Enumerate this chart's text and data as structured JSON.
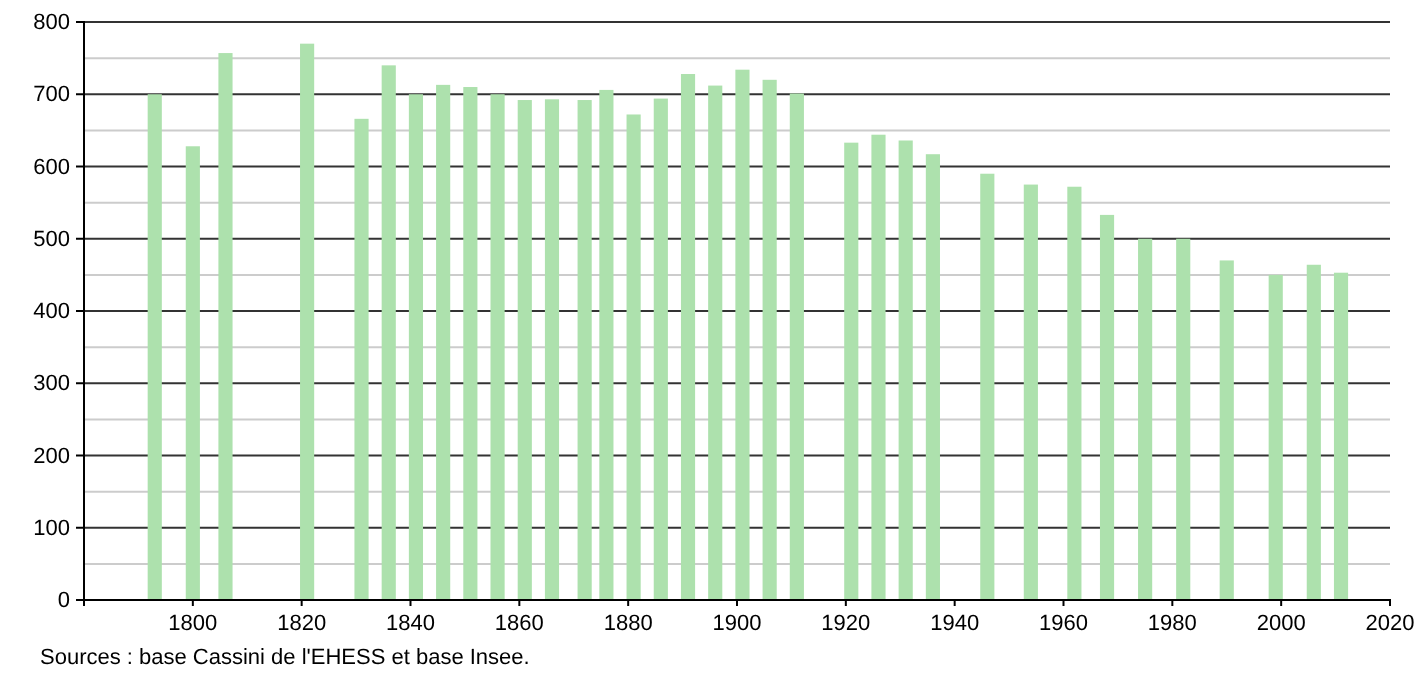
{
  "chart_data": {
    "type": "bar",
    "x": [
      1793,
      1800,
      1806,
      1821,
      1831,
      1836,
      1841,
      1846,
      1851,
      1856,
      1861,
      1866,
      1872,
      1876,
      1881,
      1886,
      1891,
      1896,
      1901,
      1906,
      1911,
      1921,
      1926,
      1931,
      1936,
      1946,
      1954,
      1962,
      1968,
      1975,
      1982,
      1990,
      1999,
      2006,
      2011
    ],
    "values": [
      700,
      628,
      757,
      770,
      666,
      740,
      700,
      713,
      710,
      700,
      692,
      693,
      692,
      706,
      672,
      694,
      728,
      712,
      734,
      720,
      701,
      633,
      644,
      636,
      617,
      590,
      575,
      572,
      533,
      500,
      500,
      470,
      450,
      464,
      453
    ],
    "color": "#ade1ad",
    "xlim": [
      1780,
      2020
    ],
    "xticks": [
      1800,
      1820,
      1840,
      1860,
      1880,
      1900,
      1920,
      1940,
      1960,
      1980,
      2000,
      2020
    ],
    "ylim": [
      0,
      800
    ],
    "yticks": [
      0,
      100,
      200,
      300,
      400,
      500,
      600,
      700,
      800
    ],
    "grid": "y",
    "annotations": [
      "Sources : base Cassini de l'EHESS et base Insee."
    ]
  }
}
